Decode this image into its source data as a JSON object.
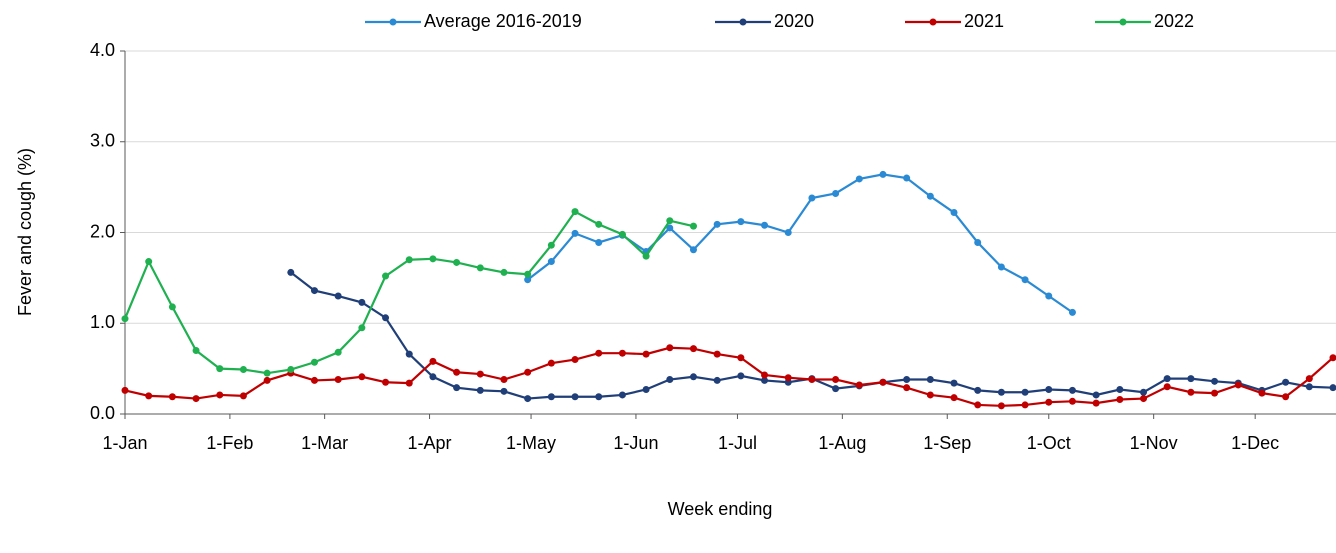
{
  "chart_data": {
    "type": "line",
    "y_label": "Fever and cough (%)",
    "x_label": "Week ending",
    "x": [
      0,
      7,
      14,
      21,
      28,
      35,
      42,
      49,
      56,
      63,
      70,
      77,
      84,
      91,
      98,
      105,
      112,
      119,
      126,
      133,
      140,
      147,
      154,
      161,
      168,
      175,
      182,
      189,
      196,
      203,
      210,
      217,
      224,
      231,
      238,
      245,
      252,
      259,
      266,
      273,
      280,
      287,
      294,
      301,
      308,
      315,
      322,
      329,
      336,
      343,
      350,
      357
    ],
    "xlim": [
      0,
      357
    ],
    "xticks": [
      {
        "value": 0,
        "label": "1-Jan"
      },
      {
        "value": 31,
        "label": "1-Feb"
      },
      {
        "value": 59,
        "label": "1-Mar"
      },
      {
        "value": 90,
        "label": "1-Apr"
      },
      {
        "value": 120,
        "label": "1-May"
      },
      {
        "value": 151,
        "label": "1-Jun"
      },
      {
        "value": 181,
        "label": "1-Jul"
      },
      {
        "value": 212,
        "label": "1-Aug"
      },
      {
        "value": 243,
        "label": "1-Sep"
      },
      {
        "value": 273,
        "label": "1-Oct"
      },
      {
        "value": 304,
        "label": "1-Nov"
      },
      {
        "value": 334,
        "label": "1-Dec"
      }
    ],
    "ylim": [
      0,
      4
    ],
    "yticks": [
      {
        "value": 0,
        "label": "0.0"
      },
      {
        "value": 1,
        "label": "1.0"
      },
      {
        "value": 2,
        "label": "2.0"
      },
      {
        "value": 3,
        "label": "3.0"
      },
      {
        "value": 4,
        "label": "4.0"
      }
    ],
    "grid": true,
    "legend": "top",
    "series": [
      {
        "name": "Average 2016-2019",
        "color": "#2a8ad4",
        "values": [
          null,
          null,
          null,
          null,
          null,
          null,
          null,
          null,
          null,
          null,
          null,
          null,
          null,
          null,
          null,
          null,
          null,
          1.48,
          1.68,
          1.99,
          1.89,
          1.97,
          1.79,
          2.05,
          1.81,
          2.09,
          2.12,
          2.08,
          2.0,
          2.38,
          2.43,
          2.59,
          2.64,
          2.6,
          2.4,
          2.22,
          1.89,
          1.62,
          1.48,
          1.3,
          1.12,
          null,
          null,
          null,
          null,
          null,
          null,
          null,
          null,
          null,
          null,
          null
        ]
      },
      {
        "name": "2020",
        "color": "#203f78",
        "values": [
          null,
          null,
          null,
          null,
          null,
          null,
          null,
          1.56,
          1.36,
          1.3,
          1.23,
          1.06,
          0.66,
          0.41,
          0.29,
          0.26,
          0.25,
          0.17,
          0.19,
          0.19,
          0.19,
          0.21,
          0.27,
          0.38,
          0.41,
          0.37,
          0.42,
          0.37,
          0.35,
          0.39,
          0.28,
          0.31,
          0.35,
          0.38,
          0.38,
          0.34,
          0.26,
          0.24,
          0.24,
          0.27,
          0.26,
          0.21,
          0.27,
          0.24,
          0.39,
          0.39,
          0.36,
          0.34,
          0.26,
          0.35,
          0.3,
          0.29
        ]
      },
      {
        "name": "2021",
        "color": "#c00000",
        "values": [
          0.26,
          0.2,
          0.19,
          0.17,
          0.21,
          0.2,
          0.37,
          0.45,
          0.37,
          0.38,
          0.41,
          0.35,
          0.34,
          0.58,
          0.46,
          0.44,
          0.38,
          0.46,
          0.56,
          0.6,
          0.67,
          0.67,
          0.66,
          0.73,
          0.72,
          0.66,
          0.62,
          0.43,
          0.4,
          0.38,
          0.38,
          0.32,
          0.35,
          0.29,
          0.21,
          0.18,
          0.1,
          0.09,
          0.1,
          0.13,
          0.14,
          0.12,
          0.16,
          0.17,
          0.3,
          0.24,
          0.23,
          0.32,
          0.23,
          0.19,
          0.39,
          0.62
        ]
      },
      {
        "name": "2022",
        "color": "#1fb050",
        "values": [
          1.05,
          1.68,
          1.18,
          0.7,
          0.5,
          0.49,
          0.45,
          0.49,
          0.57,
          0.68,
          0.95,
          1.52,
          1.7,
          1.71,
          1.67,
          1.61,
          1.56,
          1.54,
          1.86,
          2.23,
          2.09,
          1.98,
          1.74,
          2.13,
          2.07,
          null,
          null,
          null,
          null,
          null,
          null,
          null,
          null,
          null,
          null,
          null,
          null,
          null,
          null,
          null,
          null,
          null,
          null,
          null,
          null,
          null,
          null,
          null,
          null,
          null,
          null,
          null
        ]
      }
    ]
  }
}
